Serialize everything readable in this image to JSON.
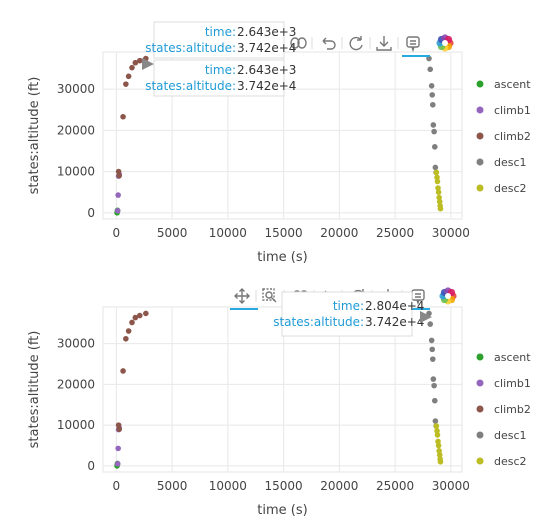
{
  "chart_data": [
    {
      "type": "scatter",
      "xlabel": "time (s)",
      "ylabel": "states:altitude (ft)",
      "xticks": [
        0,
        5000,
        10000,
        15000,
        20000,
        25000,
        30000
      ],
      "yticks": [
        0,
        10000,
        20000,
        30000
      ],
      "xlim": [
        -1200,
        31000
      ],
      "ylim": [
        -1500,
        39000
      ],
      "grid": true,
      "legend_position": "right",
      "series": [
        {
          "name": "ascent",
          "color": "#2ca02c",
          "x": [
            60,
            80,
            100
          ],
          "y": [
            0,
            300,
            600
          ]
        },
        {
          "name": "climb1",
          "color": "#9467bd",
          "x": [
            120,
            160,
            200,
            260
          ],
          "y": [
            500,
            4300,
            8900,
            9300
          ]
        },
        {
          "name": "climb2",
          "color": "#8c564b",
          "x": [
            200,
            250,
            600,
            850,
            1100,
            1400,
            1700,
            2100,
            2643
          ],
          "y": [
            10000,
            9000,
            23300,
            31200,
            33100,
            35200,
            36400,
            36900,
            37420
          ]
        },
        {
          "name": "desc1",
          "color": "#7f7f7f",
          "x": [
            28040,
            28150,
            28280,
            28330,
            28380,
            28430,
            28500,
            28560,
            28610,
            28680
          ],
          "y": [
            37420,
            34800,
            30800,
            28600,
            26200,
            21300,
            19700,
            16000,
            11000,
            9800
          ]
        },
        {
          "name": "desc2",
          "color": "#bcbd22",
          "x": [
            28700,
            28760,
            28800,
            28850,
            28900,
            28950,
            29000,
            29040,
            29070
          ],
          "y": [
            9800,
            8600,
            7600,
            6000,
            5000,
            3700,
            2700,
            1700,
            1000
          ]
        }
      ],
      "tooltips": [
        {
          "key1": "time:",
          "val1": "2.643e+3",
          "key2": "states:altitude:",
          "val2": "3.742e+4"
        },
        {
          "key1": "time:",
          "val1": "2.643e+3",
          "key2": "states:altitude:",
          "val2": "3.742e+4"
        }
      ]
    },
    {
      "type": "scatter",
      "xlabel": "time (s)",
      "ylabel": "states:altitude (ft)",
      "xticks": [
        0,
        5000,
        10000,
        15000,
        20000,
        25000,
        30000
      ],
      "yticks": [
        0,
        10000,
        20000,
        30000
      ],
      "xlim": [
        -1200,
        31000
      ],
      "ylim": [
        -1500,
        39000
      ],
      "grid": true,
      "legend_position": "right",
      "series": [
        {
          "name": "ascent",
          "color": "#2ca02c",
          "x": [
            60,
            80,
            100
          ],
          "y": [
            0,
            300,
            600
          ]
        },
        {
          "name": "climb1",
          "color": "#9467bd",
          "x": [
            120,
            160,
            200,
            260
          ],
          "y": [
            500,
            4300,
            8900,
            9300
          ]
        },
        {
          "name": "climb2",
          "color": "#8c564b",
          "x": [
            200,
            250,
            600,
            850,
            1100,
            1400,
            1700,
            2100,
            2643
          ],
          "y": [
            10000,
            9000,
            23300,
            31200,
            33100,
            35200,
            36400,
            36900,
            37420
          ]
        },
        {
          "name": "desc1",
          "color": "#7f7f7f",
          "x": [
            28040,
            28150,
            28280,
            28330,
            28380,
            28430,
            28500,
            28560,
            28610,
            28680
          ],
          "y": [
            37420,
            34800,
            30800,
            28600,
            26200,
            21300,
            19700,
            16000,
            11000,
            9800
          ]
        },
        {
          "name": "desc2",
          "color": "#bcbd22",
          "x": [
            28700,
            28760,
            28800,
            28850,
            28900,
            28950,
            29000,
            29040,
            29070
          ],
          "y": [
            9800,
            8600,
            7600,
            6000,
            5000,
            3700,
            2700,
            1700,
            1000
          ]
        }
      ],
      "tooltips": [
        {
          "key1": "time:",
          "val1": "2.804e+4",
          "key2": "states:altitude:",
          "val2": "3.742e+4"
        }
      ]
    }
  ],
  "toolbar": {
    "icons": [
      "pan-icon",
      "box-zoom-icon",
      "lasso-icon",
      "undo-icon",
      "reset-icon",
      "save-icon",
      "hover-icon",
      "bokeh-logo-icon"
    ]
  }
}
